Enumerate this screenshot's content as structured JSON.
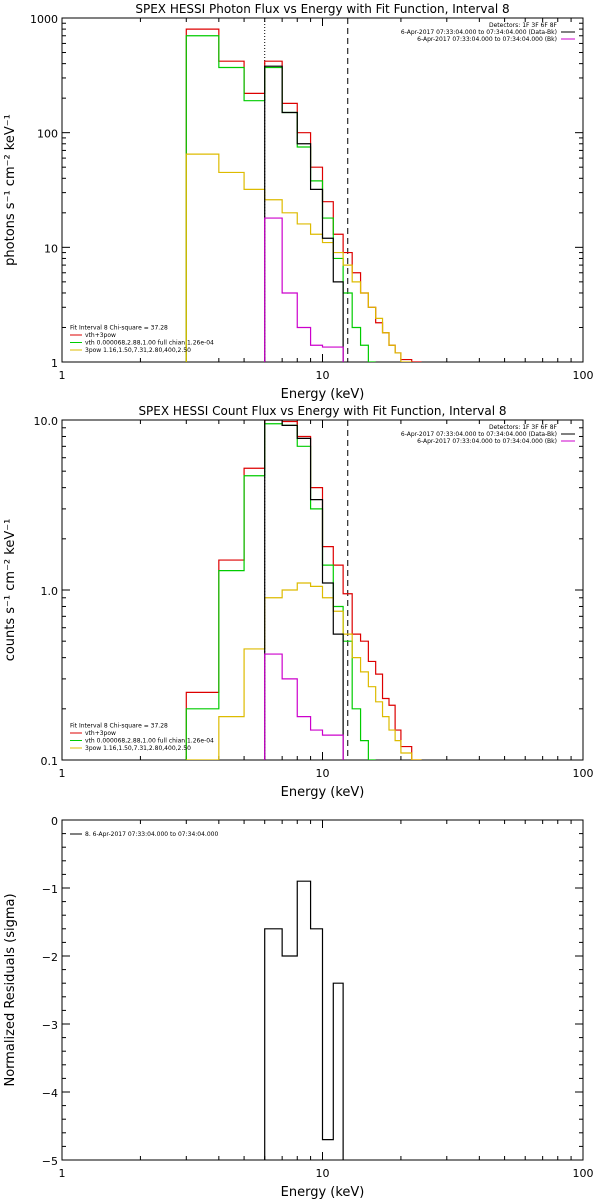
{
  "chart_data": [
    {
      "type": "step",
      "title": "SPEX HESSI Photon Flux vs Energy with Fit Function, Interval 8",
      "xlabel": "Energy (keV)",
      "ylabel": "photons s⁻¹ cm⁻² keV⁻¹",
      "xscale": "log",
      "yscale": "log",
      "xlim": [
        1,
        100
      ],
      "ylim": [
        1,
        1000
      ],
      "xticks": [
        {
          "v": 1,
          "label": "1"
        },
        {
          "v": 10,
          "label": "10"
        },
        {
          "v": 100,
          "label": "100"
        }
      ],
      "yticks": [
        {
          "v": 1,
          "label": "1"
        },
        {
          "v": 10,
          "label": "10"
        },
        {
          "v": 100,
          "label": "100"
        },
        {
          "v": 1000,
          "label": "1000"
        }
      ],
      "vlines": [
        {
          "x": 6.0,
          "style": "dotted"
        },
        {
          "x": 12.5,
          "style": "dashed"
        }
      ],
      "legend_right": [
        {
          "text": "Detectors: 1F 3F 6F 8F",
          "color": null
        },
        {
          "text": "6-Apr-2017 07:33:04.000 to 07:34:04.000 (Data-Bk)",
          "color": "#000000"
        },
        {
          "text": "6-Apr-2017 07:33:04.000 to 07:34:04.000 (Bk)",
          "color": "#cc00cc"
        }
      ],
      "legend_left": [
        {
          "text": "Fit Interval 8   Chi-square = 37.28",
          "color": null
        },
        {
          "text": "vth+3pow",
          "color": "#dd0000"
        },
        {
          "text": "vth 0.000068,2.88,1.00   full chian 1.26e-04",
          "color": "#00cc00"
        },
        {
          "text": "3pow 1.16,1.50,7.31,2.80,400,2.50",
          "color": "#ddbb00"
        }
      ],
      "series": [
        {
          "color": "#dd0000",
          "edges": [
            3,
            4,
            5,
            6,
            7,
            8,
            9,
            10,
            11,
            12,
            13,
            14,
            15,
            16,
            17,
            18,
            19,
            20,
            22,
            24
          ],
          "values": [
            800,
            420,
            220,
            420,
            180,
            100,
            50,
            25,
            13,
            9,
            6,
            4,
            3,
            2.2,
            1.8,
            1.4,
            1.2,
            1.05,
            1.0
          ]
        },
        {
          "color": "#00cc00",
          "edges": [
            3,
            4,
            5,
            6,
            7,
            8,
            9,
            10,
            11,
            12,
            13,
            14,
            15,
            16
          ],
          "values": [
            700,
            370,
            190,
            370,
            150,
            75,
            38,
            18,
            8,
            4,
            2,
            1.4,
            1.0
          ]
        },
        {
          "color": "#ddbb00",
          "edges": [
            3,
            4,
            5,
            6,
            7,
            8,
            9,
            10,
            11,
            12,
            13,
            14,
            15,
            16,
            17,
            18,
            19,
            20,
            22
          ],
          "values": [
            65,
            45,
            32,
            26,
            20,
            16,
            13,
            11,
            9,
            7,
            5,
            4,
            3,
            2.4,
            1.8,
            1.4,
            1.2,
            1.0
          ]
        },
        {
          "color": "#000000",
          "edges": [
            6,
            7,
            8,
            9,
            10,
            11,
            12
          ],
          "values": [
            380,
            150,
            80,
            32,
            12,
            5
          ]
        },
        {
          "color": "#cc00cc",
          "edges": [
            6,
            7,
            8,
            9,
            10,
            11,
            12
          ],
          "values": [
            18,
            4,
            2,
            1.4,
            1.35,
            1.35
          ]
        }
      ]
    },
    {
      "type": "step",
      "title": "SPEX HESSI Count Flux vs Energy with Fit Function, Interval 8",
      "xlabel": "Energy (keV)",
      "ylabel": "counts s⁻¹ cm⁻² keV⁻¹",
      "xscale": "log",
      "yscale": "log",
      "xlim": [
        1,
        100
      ],
      "ylim": [
        0.1,
        10
      ],
      "xticks": [
        {
          "v": 1,
          "label": "1"
        },
        {
          "v": 10,
          "label": "10"
        },
        {
          "v": 100,
          "label": "100"
        }
      ],
      "yticks": [
        {
          "v": 0.1,
          "label": "0.1"
        },
        {
          "v": 1,
          "label": "1.0"
        },
        {
          "v": 10,
          "label": "10.0"
        }
      ],
      "vlines": [
        {
          "x": 6.0,
          "style": "dotted"
        },
        {
          "x": 12.5,
          "style": "dashed"
        }
      ],
      "legend_right": [
        {
          "text": "Detectors: 1F 3F 6F 8F",
          "color": null
        },
        {
          "text": "6-Apr-2017 07:33:04.000 to 07:34:04.000 (Data-Bk)",
          "color": "#000000"
        },
        {
          "text": "6-Apr-2017 07:33:04.000 to 07:34:04.000 (Bk)",
          "color": "#cc00cc"
        }
      ],
      "legend_left": [
        {
          "text": "Fit Interval 8   Chi-square = 37.28",
          "color": null
        },
        {
          "text": "vth+3pow",
          "color": "#dd0000"
        },
        {
          "text": "vth 0.000068,2.88,1.00   full chian 1.26e-04",
          "color": "#00cc00"
        },
        {
          "text": "3pow 1.16,1.50,7.31,2.80,400,2.50",
          "color": "#ddbb00"
        }
      ],
      "series": [
        {
          "color": "#dd0000",
          "edges": [
            3,
            4,
            5,
            6,
            7,
            8,
            9,
            10,
            11,
            12,
            13,
            14,
            15,
            16,
            17,
            18,
            19,
            20,
            22,
            24
          ],
          "values": [
            0.25,
            1.5,
            5.2,
            10,
            9.8,
            8,
            4,
            1.8,
            1.4,
            0.95,
            0.55,
            0.5,
            0.38,
            0.32,
            0.23,
            0.21,
            0.15,
            0.12,
            0.1
          ]
        },
        {
          "color": "#00cc00",
          "edges": [
            3,
            4,
            5,
            6,
            7,
            8,
            9,
            10,
            11,
            12,
            13,
            14,
            15,
            16
          ],
          "values": [
            0.2,
            1.3,
            4.7,
            9.5,
            9.3,
            7,
            3,
            1.4,
            0.8,
            0.5,
            0.2,
            0.13,
            0.1
          ]
        },
        {
          "color": "#ddbb00",
          "edges": [
            3,
            4,
            5,
            6,
            7,
            8,
            9,
            10,
            11,
            12,
            13,
            14,
            15,
            16,
            17,
            18,
            19,
            20,
            22,
            24
          ],
          "values": [
            0.1,
            0.18,
            0.45,
            0.9,
            1.0,
            1.1,
            1.05,
            0.9,
            0.75,
            0.55,
            0.4,
            0.33,
            0.27,
            0.22,
            0.18,
            0.15,
            0.13,
            0.11,
            0.1
          ]
        },
        {
          "color": "#000000",
          "edges": [
            6,
            7,
            8,
            9,
            10,
            11,
            12
          ],
          "values": [
            10,
            9.3,
            7.8,
            3.4,
            1.1,
            0.55
          ]
        },
        {
          "color": "#cc00cc",
          "edges": [
            6,
            7,
            8,
            9,
            10,
            11,
            12
          ],
          "values": [
            0.42,
            0.3,
            0.18,
            0.15,
            0.14,
            0.14
          ]
        }
      ]
    },
    {
      "type": "step",
      "title": "",
      "xlabel": "Energy (keV)",
      "ylabel": "Normalized Residuals (sigma)",
      "xscale": "log",
      "yscale": "linear",
      "xlim": [
        1,
        100
      ],
      "ylim": [
        -5,
        0
      ],
      "xticks": [
        {
          "v": 1,
          "label": "1"
        },
        {
          "v": 10,
          "label": "10"
        },
        {
          "v": 100,
          "label": "100"
        }
      ],
      "yticks": [
        {
          "v": -5,
          "label": "−5"
        },
        {
          "v": -4,
          "label": "−4"
        },
        {
          "v": -3,
          "label": "−3"
        },
        {
          "v": -2,
          "label": "−2"
        },
        {
          "v": -1,
          "label": "−1"
        },
        {
          "v": 0,
          "label": "0"
        }
      ],
      "vlines": [],
      "legend_right": [],
      "legend_left": [
        {
          "text": "8.  6-Apr-2017 07:33:04.000 to 07:34:04.000",
          "color": "#000000"
        }
      ],
      "series": [
        {
          "color": "#000000",
          "closed": true,
          "edges": [
            6,
            7,
            8,
            9,
            10,
            11,
            12
          ],
          "values": [
            -1.6,
            -2.0,
            -0.9,
            -1.6,
            -4.7,
            -2.4
          ]
        }
      ]
    }
  ]
}
